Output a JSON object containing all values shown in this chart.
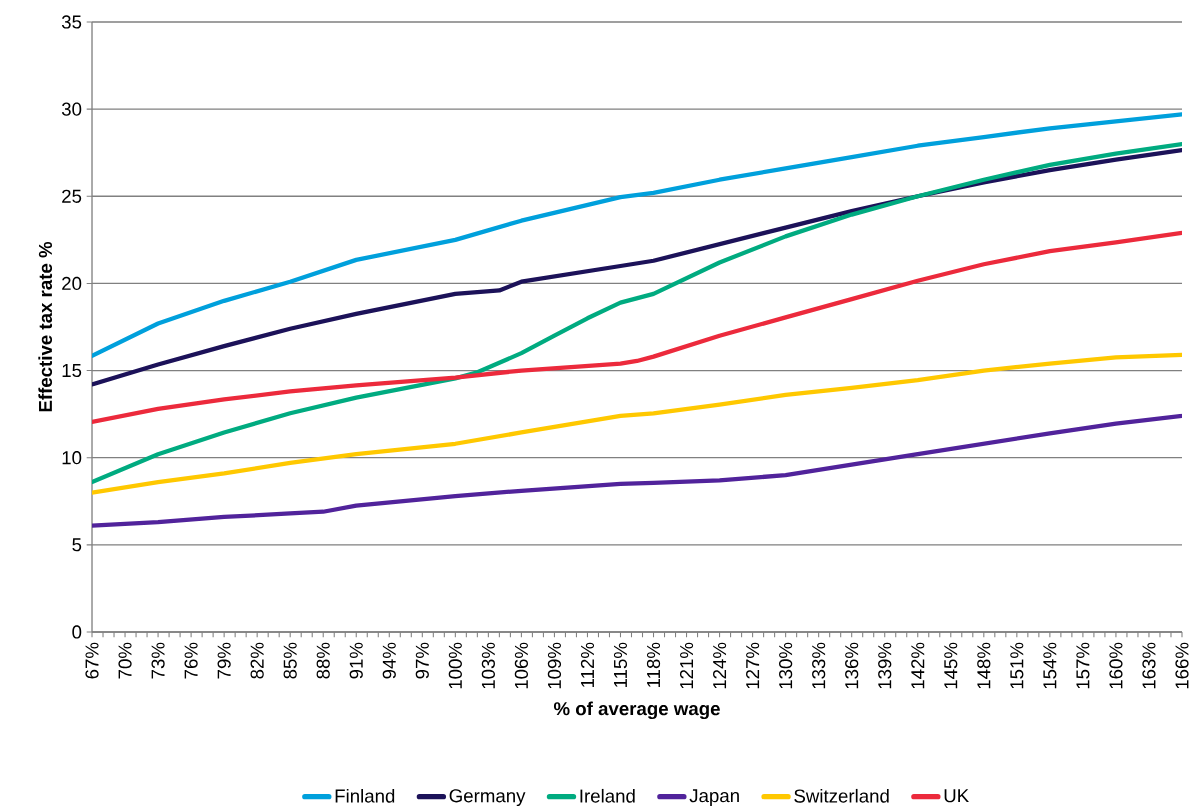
{
  "chart_data": {
    "type": "line",
    "xlabel": "% of average wage",
    "ylabel": "Effective tax rate %",
    "xlim": [
      67,
      166
    ],
    "ylim": [
      0,
      35
    ],
    "yticks": [
      0,
      5,
      10,
      15,
      20,
      25,
      30,
      35
    ],
    "xticks": [
      {
        "value": 67,
        "label": "67%"
      },
      {
        "value": 68,
        "label": null
      },
      {
        "value": 69,
        "label": null
      },
      {
        "value": 70,
        "label": "70%"
      },
      {
        "value": 71,
        "label": null
      },
      {
        "value": 72,
        "label": null
      },
      {
        "value": 73,
        "label": "73%"
      },
      {
        "value": 74,
        "label": null
      },
      {
        "value": 75,
        "label": null
      },
      {
        "value": 76,
        "label": "76%"
      },
      {
        "value": 77,
        "label": null
      },
      {
        "value": 78,
        "label": null
      },
      {
        "value": 79,
        "label": "79%"
      },
      {
        "value": 80,
        "label": null
      },
      {
        "value": 81,
        "label": null
      },
      {
        "value": 82,
        "label": "82%"
      },
      {
        "value": 83,
        "label": null
      },
      {
        "value": 84,
        "label": null
      },
      {
        "value": 85,
        "label": "85%"
      },
      {
        "value": 86,
        "label": null
      },
      {
        "value": 87,
        "label": null
      },
      {
        "value": 88,
        "label": "88%"
      },
      {
        "value": 89,
        "label": null
      },
      {
        "value": 90,
        "label": null
      },
      {
        "value": 91,
        "label": "91%"
      },
      {
        "value": 92,
        "label": null
      },
      {
        "value": 93,
        "label": null
      },
      {
        "value": 94,
        "label": "94%"
      },
      {
        "value": 95,
        "label": null
      },
      {
        "value": 96,
        "label": null
      },
      {
        "value": 97,
        "label": "97%"
      },
      {
        "value": 98,
        "label": null
      },
      {
        "value": 99,
        "label": null
      },
      {
        "value": 100,
        "label": "100%"
      },
      {
        "value": 101,
        "label": null
      },
      {
        "value": 102,
        "label": null
      },
      {
        "value": 103,
        "label": "103%"
      },
      {
        "value": 104,
        "label": null
      },
      {
        "value": 105,
        "label": null
      },
      {
        "value": 106,
        "label": "106%"
      },
      {
        "value": 107,
        "label": null
      },
      {
        "value": 108,
        "label": null
      },
      {
        "value": 109,
        "label": "109%"
      },
      {
        "value": 110,
        "label": null
      },
      {
        "value": 111,
        "label": null
      },
      {
        "value": 112,
        "label": "112%"
      },
      {
        "value": 113,
        "label": null
      },
      {
        "value": 114,
        "label": null
      },
      {
        "value": 115,
        "label": "115%"
      },
      {
        "value": 116,
        "label": null
      },
      {
        "value": 117,
        "label": null
      },
      {
        "value": 118,
        "label": "118%"
      },
      {
        "value": 119,
        "label": null
      },
      {
        "value": 120,
        "label": null
      },
      {
        "value": 121,
        "label": "121%"
      },
      {
        "value": 122,
        "label": null
      },
      {
        "value": 123,
        "label": null
      },
      {
        "value": 124,
        "label": "124%"
      },
      {
        "value": 125,
        "label": null
      },
      {
        "value": 126,
        "label": null
      },
      {
        "value": 127,
        "label": "127%"
      },
      {
        "value": 128,
        "label": null
      },
      {
        "value": 129,
        "label": null
      },
      {
        "value": 130,
        "label": "130%"
      },
      {
        "value": 131,
        "label": null
      },
      {
        "value": 132,
        "label": null
      },
      {
        "value": 133,
        "label": "133%"
      },
      {
        "value": 134,
        "label": null
      },
      {
        "value": 135,
        "label": null
      },
      {
        "value": 136,
        "label": "136%"
      },
      {
        "value": 137,
        "label": null
      },
      {
        "value": 138,
        "label": null
      },
      {
        "value": 139,
        "label": "139%"
      },
      {
        "value": 140,
        "label": null
      },
      {
        "value": 141,
        "label": null
      },
      {
        "value": 142,
        "label": "142%"
      },
      {
        "value": 143,
        "label": null
      },
      {
        "value": 144,
        "label": null
      },
      {
        "value": 145,
        "label": "145%"
      },
      {
        "value": 146,
        "label": null
      },
      {
        "value": 147,
        "label": null
      },
      {
        "value": 148,
        "label": "148%"
      },
      {
        "value": 149,
        "label": null
      },
      {
        "value": 150,
        "label": null
      },
      {
        "value": 151,
        "label": "151%"
      },
      {
        "value": 152,
        "label": null
      },
      {
        "value": 153,
        "label": null
      },
      {
        "value": 154,
        "label": "154%"
      },
      {
        "value": 155,
        "label": null
      },
      {
        "value": 156,
        "label": null
      },
      {
        "value": 157,
        "label": "157%"
      },
      {
        "value": 158,
        "label": null
      },
      {
        "value": 159,
        "label": null
      },
      {
        "value": 160,
        "label": "160%"
      },
      {
        "value": 161,
        "label": null
      },
      {
        "value": 162,
        "label": null
      },
      {
        "value": 163,
        "label": "163%"
      },
      {
        "value": 164,
        "label": null
      },
      {
        "value": 165,
        "label": null
      },
      {
        "value": 166,
        "label": "166%"
      }
    ],
    "grid": "y",
    "legend": "bottom",
    "marker": "none",
    "line_style": "solid",
    "series": [
      {
        "name": "Finland",
        "color": "#00a0dc",
        "x": [
          67,
          73,
          79,
          85,
          91,
          100,
          106,
          115,
          118,
          124,
          130,
          136,
          142,
          148,
          154,
          160,
          166
        ],
        "values": [
          15.85,
          17.7,
          19.0,
          20.1,
          21.35,
          22.5,
          23.6,
          24.95,
          25.2,
          25.95,
          26.6,
          27.25,
          27.9,
          28.4,
          28.9,
          29.3,
          29.7
        ]
      },
      {
        "name": "Germany",
        "color": "#1c1259",
        "x": [
          67,
          73,
          79,
          85,
          91,
          100,
          104,
          106,
          115,
          118,
          124,
          130,
          136,
          142,
          148,
          154,
          160,
          166
        ],
        "values": [
          14.2,
          15.35,
          16.4,
          17.4,
          18.25,
          19.4,
          19.6,
          20.1,
          21.0,
          21.3,
          22.25,
          23.2,
          24.15,
          25.0,
          25.8,
          26.5,
          27.1,
          27.65
        ]
      },
      {
        "name": "Ireland",
        "color": "#00ab80",
        "x": [
          67,
          73,
          79,
          85,
          91,
          100,
          102,
          106,
          109,
          112,
          115,
          118,
          124,
          130,
          136,
          142,
          148,
          154,
          160,
          166
        ],
        "values": [
          8.6,
          10.2,
          11.45,
          12.55,
          13.45,
          14.55,
          14.9,
          16.0,
          17.0,
          18.0,
          18.9,
          19.4,
          21.2,
          22.7,
          23.95,
          25.0,
          25.95,
          26.8,
          27.45,
          28.0
        ]
      },
      {
        "name": "Japan",
        "color": "#51239b",
        "x": [
          67,
          73,
          79,
          85,
          88,
          91,
          100,
          106,
          115,
          118,
          124,
          130,
          136,
          142,
          148,
          154,
          160,
          166
        ],
        "values": [
          6.1,
          6.3,
          6.6,
          6.8,
          6.9,
          7.25,
          7.8,
          8.1,
          8.5,
          8.55,
          8.7,
          9.0,
          9.6,
          10.2,
          10.8,
          11.4,
          11.95,
          12.4
        ]
      },
      {
        "name": "Switzerland",
        "color": "#ffc800",
        "x": [
          67,
          73,
          79,
          85,
          91,
          100,
          106,
          115,
          118,
          124,
          130,
          136,
          142,
          148,
          154,
          160,
          166
        ],
        "values": [
          8.0,
          8.6,
          9.1,
          9.7,
          10.2,
          10.8,
          11.45,
          12.4,
          12.55,
          13.05,
          13.6,
          14.0,
          14.45,
          15.0,
          15.4,
          15.75,
          15.9
        ]
      },
      {
        "name": "UK",
        "color": "#ec2a3c",
        "x": [
          67,
          73,
          79,
          85,
          91,
          100,
          106,
          115,
          116.5,
          118,
          124,
          130,
          136,
          142,
          148,
          154,
          160,
          166
        ],
        "values": [
          12.05,
          12.8,
          13.35,
          13.8,
          14.15,
          14.6,
          15.0,
          15.4,
          15.55,
          15.8,
          17.0,
          18.05,
          19.1,
          20.15,
          21.1,
          21.85,
          22.35,
          22.9
        ]
      }
    ]
  }
}
